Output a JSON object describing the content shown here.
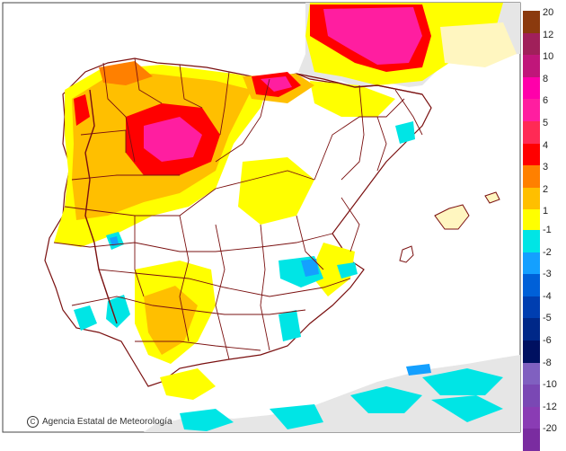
{
  "credit": {
    "symbol": "C",
    "text": "Agencia Estatal de Meteorología"
  },
  "legend": {
    "labels": [
      "20",
      "12",
      "10",
      "8",
      "6",
      "5",
      "4",
      "3",
      "2",
      "1",
      "-1",
      "-2",
      "-3",
      "-4",
      "-5",
      "-6",
      "-8",
      "-10",
      "-12",
      "-20"
    ],
    "warm_colors": [
      "#8b3a0e",
      "#a0205a",
      "#c0167a",
      "#ff00aa",
      "#ff1ea0",
      "#ff2a55",
      "#ff0000",
      "#ff8000",
      "#ffbf00",
      "#ffff00"
    ],
    "cool_colors": [
      "#00e5e5",
      "#14a0ff",
      "#0060d8",
      "#003eb0",
      "#002888",
      "#001060",
      "#8060c0",
      "#7a48b4",
      "#8a3cb4",
      "#7a2ca0"
    ]
  },
  "colors": {
    "sea": "#ffffff",
    "land_outside": "#e6e6e6",
    "border": "#7a1010",
    "frame": "#444444"
  }
}
